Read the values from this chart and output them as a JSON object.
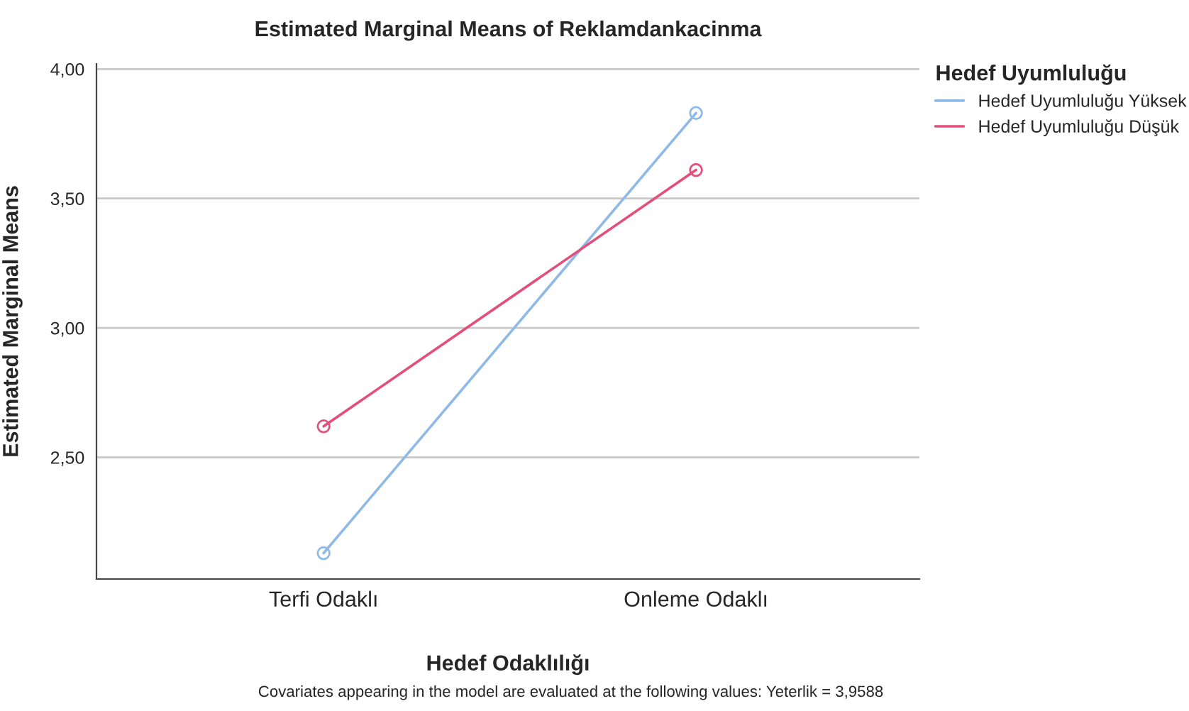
{
  "chart_data": {
    "type": "line",
    "title": "Estimated Marginal Means of Reklamdankacinma",
    "xlabel": "Hedef Odaklılığı",
    "ylabel": "Estimated Marginal Means",
    "legend_title": "Hedef Uyumluluğu",
    "categories": [
      "Terfi Odaklı",
      "Onleme Odaklı"
    ],
    "series": [
      {
        "name": "Hedef Uyumluluğu Yüksek",
        "color": "#8fb9e6",
        "values": [
          2.13,
          3.83
        ]
      },
      {
        "name": "Hedef Uyumluluğu Düşük",
        "color": "#e2507a",
        "values": [
          2.62,
          3.61
        ]
      }
    ],
    "ylim": [
      2.03,
      4.02
    ],
    "yticks": [
      {
        "value": 2.5,
        "label": "2,50"
      },
      {
        "value": 3.0,
        "label": "3,00"
      },
      {
        "value": 3.5,
        "label": "3,50"
      },
      {
        "value": 4.0,
        "label": "4,00"
      }
    ],
    "grid": "y",
    "legend": "top right",
    "marker": "circle",
    "line_style": "solid",
    "annotations": [
      "Covariates appearing in the model are evaluated at the following values: Yeterlik = 3,9588"
    ]
  }
}
